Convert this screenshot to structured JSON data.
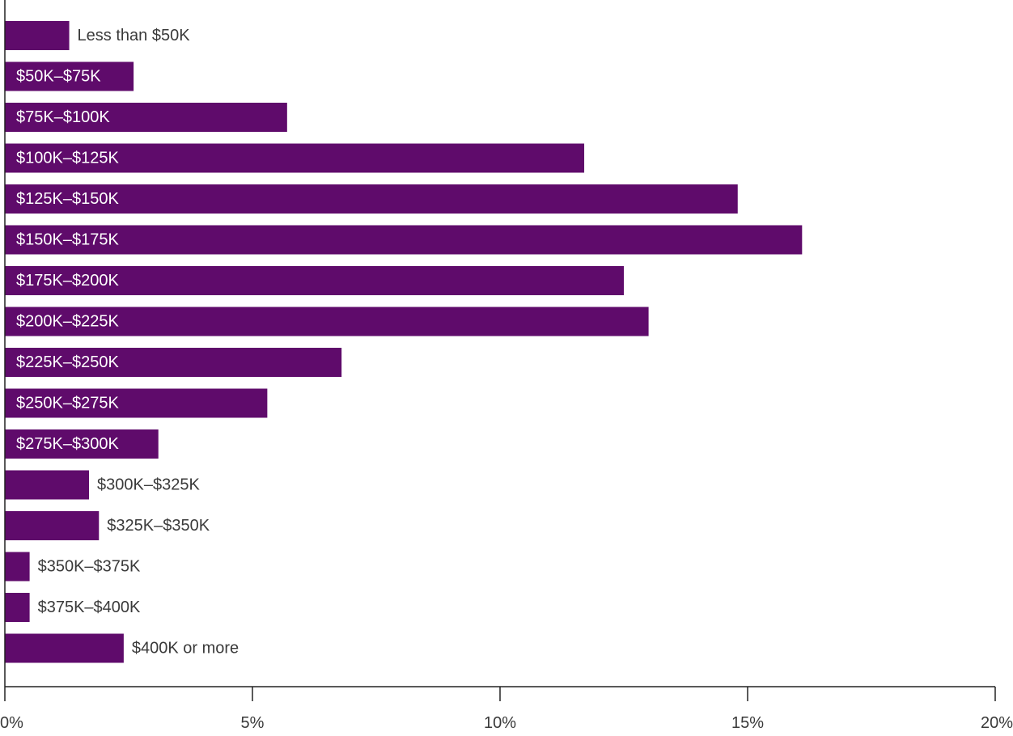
{
  "chart_data": {
    "type": "bar",
    "orientation": "horizontal",
    "categories": [
      "Less than $50K",
      "$50K–$75K",
      "$75K–$100K",
      "$100K–$125K",
      "$125K–$150K",
      "$150K–$175K",
      "$175K–$200K",
      "$200K–$225K",
      "$225K–$250K",
      "$250K–$275K",
      "$275K–$300K",
      "$300K–$325K",
      "$325K–$350K",
      "$350K–$375K",
      "$375K–$400K",
      "$400K or more"
    ],
    "values": [
      1.3,
      2.6,
      5.7,
      11.7,
      14.8,
      16.1,
      12.5,
      13.0,
      6.8,
      5.3,
      3.1,
      1.7,
      1.9,
      0.5,
      0.5,
      2.4
    ],
    "xlim": [
      0,
      20
    ],
    "xticks": [
      0,
      5,
      10,
      15,
      20
    ],
    "xtick_labels": [
      "0%",
      "5%",
      "10%",
      "15%",
      "20%"
    ],
    "title": "",
    "xlabel": "",
    "ylabel": "",
    "grid": false,
    "legend": "none",
    "colors": {
      "bar": "#5f0b6b",
      "label_inside": "#ffffff",
      "label_outside": "#3a3a3a",
      "axis": "#222222"
    }
  }
}
